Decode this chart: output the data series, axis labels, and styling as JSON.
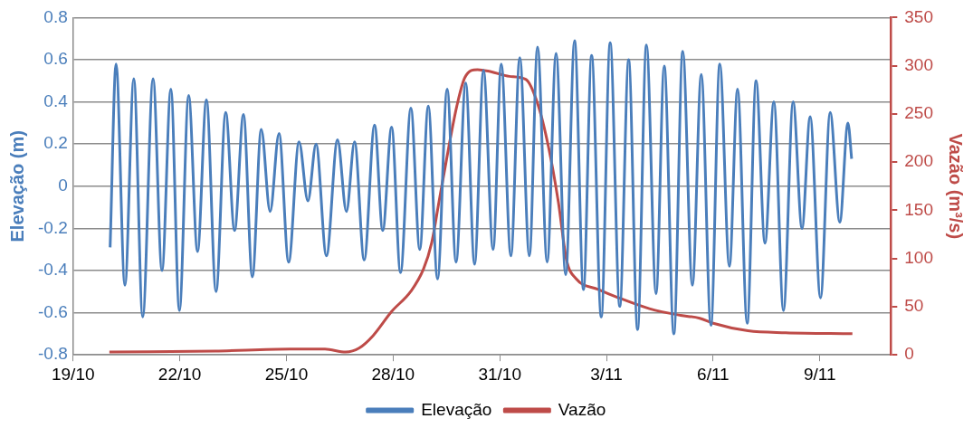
{
  "chart_data": {
    "type": "line",
    "ylabel": "Elevação (m)",
    "y2label": "Vazão (m³/s)",
    "xlim": [
      "--10-19",
      "--11-11"
    ],
    "xticks": [
      {
        "value": "--10-19",
        "label": "19/10"
      },
      {
        "value": "--10-22",
        "label": "22/10"
      },
      {
        "value": "--10-25",
        "label": "25/10"
      },
      {
        "value": "--10-28",
        "label": "28/10"
      },
      {
        "value": "--10-31",
        "label": "31/10"
      },
      {
        "value": "--11-03",
        "label": "3/11"
      },
      {
        "value": "--11-06",
        "label": "6/11"
      },
      {
        "value": "--11-09",
        "label": "9/11"
      }
    ],
    "ylim": [
      -0.8,
      0.8
    ],
    "yticks": [
      -0.8,
      -0.6,
      -0.4,
      -0.2,
      0,
      0.2,
      0.4,
      0.6,
      0.8
    ],
    "y2lim": [
      0,
      350
    ],
    "y2ticks": [
      0,
      50,
      100,
      150,
      200,
      250,
      300,
      350
    ],
    "grid": "y",
    "legend": "bottom",
    "series": [
      {
        "name": "Elevação",
        "color": "#4a7ebb",
        "x": [
          "--10-20T01:00",
          "--10-20T05:00",
          "--10-20T11:00",
          "--10-20T17:00",
          "--10-20T23:00",
          "--10-21T06:00",
          "--10-21T12:00",
          "--10-21T18:00",
          "--10-21T23:45",
          "--10-22T06:00",
          "--10-22T12:00",
          "--10-22T18:00",
          "--10-23T00:30",
          "--10-23T07:00",
          "--10-23T13:00",
          "--10-23T19:00",
          "--10-24T01:00",
          "--10-24T07:00",
          "--10-24T13:00",
          "--10-24T19:00",
          "--10-25T01:30",
          "--10-25T08:30",
          "--10-25T14:30",
          "--10-25T20:00",
          "--10-26T03:00",
          "--10-26T10:30",
          "--10-26T16:30",
          "--10-26T22:00",
          "--10-27T04:30",
          "--10-27T11:30",
          "--10-27T17:00",
          "--10-27T23:00",
          "--10-28T05:00",
          "--10-28T12:00",
          "--10-28T18:00",
          "--10-28T23:45",
          "--10-29T06:00",
          "--10-29T12:30",
          "--10-29T18:30",
          "--10-30T01:00",
          "--10-30T07:00",
          "--10-30T13:00",
          "--10-30T19:30",
          "--10-31T01:00",
          "--10-31T07:30",
          "--10-31T13:30",
          "--10-31T20:00",
          "--11-01T01:30",
          "--11-01T08:00",
          "--11-01T14:00",
          "--11-01T20:30",
          "--11-02T02:30",
          "--11-02T08:30",
          "--11-02T14:00",
          "--11-02T20:30",
          "--11-03T02:30",
          "--11-03T09:00",
          "--11-03T15:00",
          "--11-03T21:00",
          "--11-04T03:00",
          "--11-04T09:30",
          "--11-04T15:00",
          "--11-04T21:30",
          "--11-05T03:30",
          "--11-05T10:00",
          "--11-05T16:00",
          "--11-05T22:30",
          "--11-06T04:30",
          "--11-06T11:00",
          "--11-06T16:30",
          "--11-06T23:00",
          "--11-07T05:00",
          "--11-07T11:00",
          "--11-07T17:00",
          "--11-07T23:30",
          "--11-08T06:00",
          "--11-08T12:00",
          "--11-08T17:30",
          "--11-09T00:30",
          "--11-09T07:00",
          "--11-09T13:30",
          "--11-09T19:00",
          "--11-09T21:30"
        ],
        "values": [
          -0.29,
          0.58,
          -0.47,
          0.51,
          -0.62,
          0.51,
          -0.4,
          0.46,
          -0.59,
          0.43,
          -0.31,
          0.41,
          -0.5,
          0.35,
          -0.21,
          0.34,
          -0.43,
          0.27,
          -0.12,
          0.25,
          -0.36,
          0.21,
          -0.07,
          0.2,
          -0.33,
          0.22,
          -0.12,
          0.21,
          -0.35,
          0.29,
          -0.21,
          0.28,
          -0.41,
          0.37,
          -0.3,
          0.38,
          -0.44,
          0.46,
          -0.36,
          0.49,
          -0.37,
          0.55,
          -0.3,
          0.58,
          -0.33,
          0.61,
          -0.33,
          0.66,
          -0.36,
          0.63,
          -0.42,
          0.69,
          -0.49,
          0.62,
          -0.62,
          0.68,
          -0.57,
          0.6,
          -0.68,
          0.67,
          -0.51,
          0.57,
          -0.7,
          0.64,
          -0.47,
          0.53,
          -0.66,
          0.58,
          -0.38,
          0.46,
          -0.65,
          0.5,
          -0.27,
          0.4,
          -0.59,
          0.4,
          -0.2,
          0.33,
          -0.53,
          0.35,
          -0.17,
          0.3,
          0.13
        ]
      },
      {
        "name": "Vazão",
        "color": "#be4b48",
        "axis": "y2",
        "x": [
          "--10-20T00:30",
          "--10-23T00:00",
          "--10-25T02:30",
          "--10-26T02:00",
          "--10-26T16:00",
          "--10-27T01:00",
          "--10-27T10:30",
          "--10-27T23:00",
          "--10-28T12:00",
          "--10-28T20:30",
          "--10-29T02:00",
          "--10-29T07:00",
          "--10-29T13:30",
          "--10-29T19:00",
          "--10-30T00:30",
          "--10-30T09:00",
          "--10-30T17:30",
          "--10-31T06:30",
          "--10-31T17:30",
          "--11-01T01:30",
          "--11-01T09:00",
          "--11-01T15:30",
          "--11-01T21:00",
          "--11-02T03:30",
          "--11-02T18:30",
          "--11-03T07:00",
          "--11-04T05:00",
          "--11-05T02:00",
          "--11-05T15:00",
          "--11-05T23:30",
          "--11-06T23:30",
          "--11-08T01:00",
          "--11-09T22:00"
        ],
        "values": [
          3,
          4,
          6,
          6,
          3,
          7,
          20,
          45,
          66,
          89,
          116,
          159,
          215,
          258,
          288,
          296,
          294,
          289,
          286,
          261,
          215,
          159,
          99,
          79,
          68,
          60,
          48,
          41,
          38,
          33,
          25,
          23,
          22
        ]
      }
    ]
  }
}
